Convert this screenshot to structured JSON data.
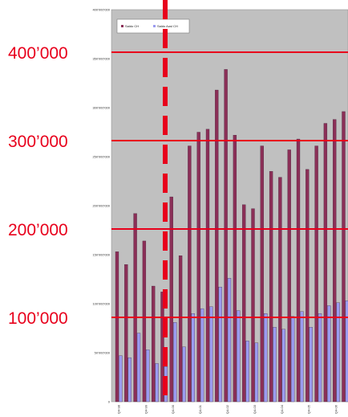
{
  "chart_data": {
    "type": "bar",
    "title": "",
    "xlabel": "",
    "ylabel": "",
    "ylim": [
      0,
      400000000
    ],
    "y_ticks": [
      "0",
      "50'000'000",
      "100'000'000",
      "150'000'000",
      "200'000'000",
      "250'000'000",
      "300'000'000",
      "350'000'000",
      "400'000'000"
    ],
    "x_tick_labels": [
      "Q4-98",
      "",
      "",
      "Q4-99",
      "",
      "",
      "Q4-00",
      "",
      "",
      "Q4-01",
      "",
      "",
      "Q4-02",
      "",
      "",
      "Q4-03",
      "",
      "",
      "Q4-04",
      "",
      "",
      "Q4-05",
      "",
      "",
      "Q4-06",
      ""
    ],
    "series": [
      {
        "name": "Saldo CH",
        "color": "#8b2f57",
        "values": [
          153000000,
          140000000,
          192000000,
          164000000,
          118000000,
          112000000,
          209000000,
          149000000,
          261000000,
          275000000,
          278000000,
          318000000,
          339000000,
          272000000,
          201000000,
          197000000,
          261000000,
          235000000,
          229000000,
          257000000,
          268000000,
          237000000,
          261000000,
          284000000,
          288000000,
          296000000
        ]
      },
      {
        "name": "Saldo Ausl CH",
        "color": "#9b9bf0",
        "values": [
          47000000,
          45000000,
          70000000,
          53000000,
          39000000,
          36000000,
          81000000,
          56000000,
          90000000,
          95000000,
          97000000,
          117000000,
          126000000,
          93000000,
          62000000,
          60000000,
          90000000,
          76000000,
          74000000,
          87000000,
          92000000,
          76000000,
          90000000,
          98000000,
          101000000,
          103000000
        ]
      }
    ],
    "overlay_lines": [
      {
        "label": "100’000",
        "value": 100000
      },
      {
        "label": "200’000",
        "value": 200000
      },
      {
        "label": "300’000",
        "value": 300000
      },
      {
        "label": "400’000",
        "value": 400000
      }
    ],
    "colors": {
      "plot_bg": "#c0c0c0",
      "overlay": "#e8001c"
    },
    "legend": "top-left"
  }
}
